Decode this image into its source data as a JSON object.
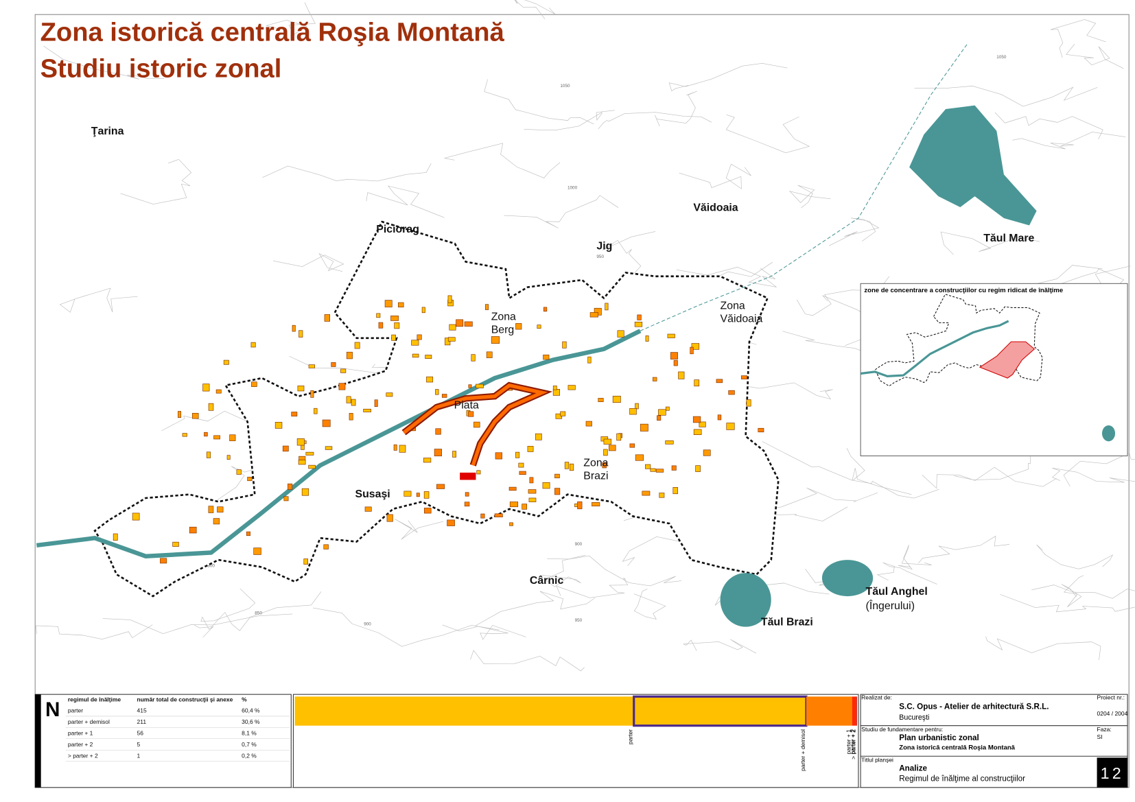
{
  "header": {
    "title_line1": "Zona istorică centrală Roşia Montană",
    "title_line2": "Studiu istoric zonal"
  },
  "places": [
    "Ţarina",
    "Piciorag",
    "Văidoaia",
    "Jig",
    "Tăul Mare",
    "Zona",
    "Berg",
    "Zona",
    "Văidoaia",
    "Piata",
    "Zona",
    "Brazi",
    "Susaşi",
    "Cârnic",
    "Tăul Anghel",
    "(Îngerului)",
    "Tăul Brazi"
  ],
  "contour_labels": [
    "1050",
    "1000",
    "1050",
    "950",
    "900",
    "850",
    "800",
    "850",
    "900",
    "950"
  ],
  "inset": {
    "title": "zone de concentrare a construcţiilor cu regim ridicat de înălţime"
  },
  "north": "N",
  "legend_table": {
    "headers": [
      "regimul de înălţime",
      "număr total de construcţii şi anexe",
      "%"
    ],
    "rows": [
      {
        "label": "parter",
        "count": 415,
        "percent": "60,4 %",
        "color": "#ffc000"
      },
      {
        "label": "parter + demisol",
        "count": 211,
        "percent": "30,6 %",
        "color": "#ffc000"
      },
      {
        "label": "parter + 1",
        "count": 56,
        "percent": "8,1 %",
        "color": "#ff8000"
      },
      {
        "label": "parter + 2",
        "count": 5,
        "percent": "0,7 %",
        "color": "#ff2a00"
      },
      {
        "label": "> parter + 2",
        "count": 1,
        "percent": "0,2 %",
        "color": "#d00000"
      }
    ]
  },
  "title_block": {
    "made_by_label": "Realizat de:",
    "company": "S.C. Opus - Atelier de arhitectură S.R.L.",
    "city": "Bucureşti",
    "project_label": "Proiect nr.:",
    "project_no": "0204 / 2004",
    "study_label": "Studiu de fundamentare pentru:",
    "plan": "Plan urbanistic zonal",
    "zone": "Zona istorică centrală Roşia Montană",
    "phase_label": "Faza:",
    "phase": "SI",
    "sheet_label": "Titlul planşei",
    "sheet_title": "Analize",
    "sheet_subtitle": "Regimul de înălţime al construcţiilor",
    "sheet_no": "12"
  }
}
